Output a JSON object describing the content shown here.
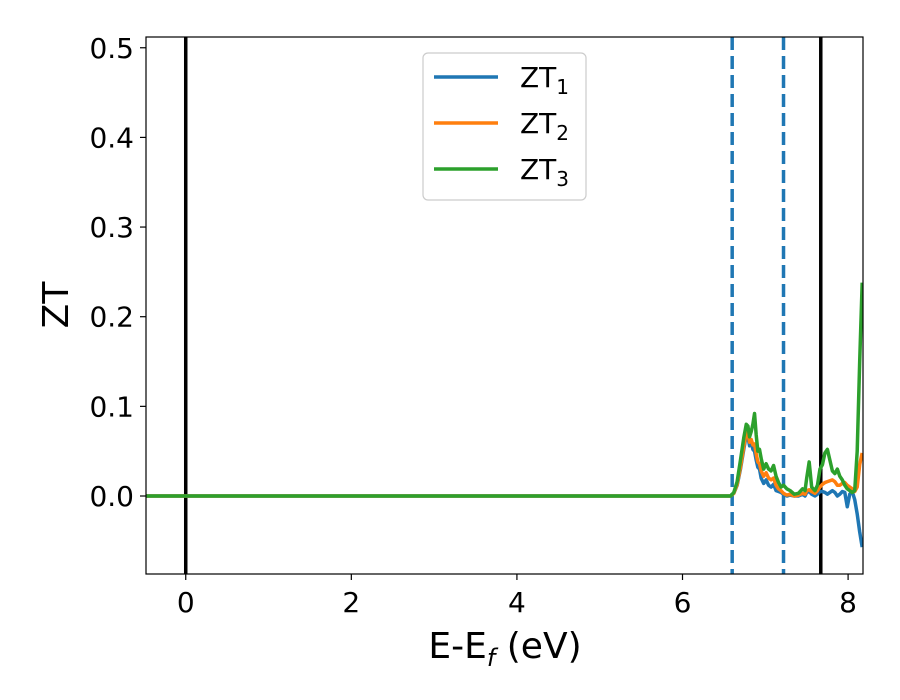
{
  "chart_data": {
    "type": "line",
    "xlabel_main": "E-E",
    "xlabel_sub": "f",
    "xlabel_unit": " (eV)",
    "ylabel": "ZT",
    "xlim": [
      -0.48,
      8.18
    ],
    "ylim": [
      -0.087,
      0.512
    ],
    "xticks": [
      0,
      2,
      4,
      6,
      8
    ],
    "xtick_labels": [
      "0",
      "2",
      "4",
      "6",
      "8"
    ],
    "yticks": [
      0.0,
      0.1,
      0.2,
      0.3,
      0.4,
      0.5
    ],
    "ytick_labels": [
      "0.0",
      "0.1",
      "0.2",
      "0.3",
      "0.4",
      "0.5"
    ],
    "grid": false,
    "legend_position": "top-center",
    "vlines_solid": [
      0.0,
      7.67
    ],
    "vlines_dashed": [
      6.6,
      7.22
    ],
    "series": [
      {
        "label_main": "ZT",
        "label_sub": "1",
        "color": "#1f77b4",
        "x": [
          -0.48,
          6.55,
          6.58,
          6.62,
          6.66,
          6.7,
          6.74,
          6.77,
          6.79,
          6.81,
          6.83,
          6.85,
          6.87,
          6.89,
          6.91,
          6.93,
          6.95,
          6.98,
          7.01,
          7.04,
          7.07,
          7.1,
          7.13,
          7.16,
          7.19,
          7.22,
          7.26,
          7.3,
          7.35,
          7.4,
          7.45,
          7.48,
          7.5,
          7.53,
          7.56,
          7.6,
          7.63,
          7.66,
          7.69,
          7.72,
          7.75,
          7.78,
          7.81,
          7.84,
          7.87,
          7.9,
          7.93,
          7.96,
          7.99,
          8.02,
          8.05,
          8.08,
          8.11,
          8.14,
          8.17
        ],
        "y": [
          0.0,
          0.0,
          0.0,
          0.003,
          0.012,
          0.03,
          0.052,
          0.068,
          0.066,
          0.056,
          0.06,
          0.052,
          0.05,
          0.04,
          0.032,
          0.03,
          0.02,
          0.014,
          0.018,
          0.012,
          0.01,
          0.013,
          0.006,
          0.005,
          0.004,
          0.002,
          0.0,
          0.001,
          0.0,
          0.0,
          0.002,
          0.0,
          0.004,
          0.005,
          0.002,
          0.0,
          0.002,
          0.005,
          0.005,
          0.004,
          0.002,
          0.004,
          0.006,
          0.004,
          0.0,
          0.002,
          0.005,
          0.004,
          -0.012,
          0.002,
          0.005,
          -0.004,
          -0.02,
          -0.04,
          -0.057
        ]
      },
      {
        "label_main": "ZT",
        "label_sub": "2",
        "color": "#ff7f0e",
        "x": [
          -0.48,
          6.55,
          6.58,
          6.62,
          6.66,
          6.7,
          6.74,
          6.77,
          6.79,
          6.81,
          6.83,
          6.85,
          6.87,
          6.89,
          6.91,
          6.93,
          6.95,
          6.98,
          7.01,
          7.04,
          7.07,
          7.1,
          7.13,
          7.16,
          7.19,
          7.22,
          7.26,
          7.3,
          7.35,
          7.4,
          7.45,
          7.48,
          7.5,
          7.53,
          7.56,
          7.6,
          7.63,
          7.66,
          7.69,
          7.72,
          7.75,
          7.78,
          7.81,
          7.84,
          7.87,
          7.9,
          7.93,
          7.96,
          7.99,
          8.02,
          8.05,
          8.08,
          8.11,
          8.14,
          8.17
        ],
        "y": [
          0.0,
          0.0,
          0.0,
          0.003,
          0.013,
          0.032,
          0.055,
          0.072,
          0.07,
          0.06,
          0.063,
          0.057,
          0.058,
          0.047,
          0.038,
          0.036,
          0.028,
          0.022,
          0.026,
          0.02,
          0.018,
          0.02,
          0.012,
          0.008,
          0.006,
          0.003,
          0.001,
          0.002,
          0.0,
          0.001,
          0.003,
          0.002,
          0.006,
          0.007,
          0.005,
          0.003,
          0.006,
          0.01,
          0.013,
          0.015,
          0.016,
          0.017,
          0.018,
          0.016,
          0.012,
          0.012,
          0.014,
          0.015,
          0.012,
          0.01,
          0.008,
          0.005,
          0.01,
          0.035,
          0.048
        ]
      },
      {
        "label_main": "ZT",
        "label_sub": "3",
        "color": "#2ca02c",
        "x": [
          -0.48,
          6.55,
          6.58,
          6.62,
          6.66,
          6.7,
          6.74,
          6.77,
          6.79,
          6.81,
          6.83,
          6.85,
          6.87,
          6.89,
          6.91,
          6.93,
          6.95,
          6.98,
          7.01,
          7.04,
          7.07,
          7.1,
          7.13,
          7.16,
          7.19,
          7.22,
          7.26,
          7.3,
          7.35,
          7.4,
          7.45,
          7.48,
          7.5,
          7.53,
          7.56,
          7.6,
          7.63,
          7.66,
          7.69,
          7.72,
          7.75,
          7.78,
          7.81,
          7.84,
          7.87,
          7.9,
          7.93,
          7.96,
          7.99,
          8.02,
          8.05,
          8.08,
          8.11,
          8.14,
          8.17
        ],
        "y": [
          0.0,
          0.0,
          0.0,
          0.004,
          0.016,
          0.04,
          0.065,
          0.08,
          0.078,
          0.066,
          0.072,
          0.08,
          0.092,
          0.068,
          0.05,
          0.052,
          0.042,
          0.03,
          0.036,
          0.03,
          0.028,
          0.034,
          0.022,
          0.015,
          0.01,
          0.012,
          0.008,
          0.006,
          0.002,
          0.003,
          0.008,
          0.006,
          0.02,
          0.038,
          0.01,
          0.006,
          0.012,
          0.03,
          0.035,
          0.048,
          0.052,
          0.04,
          0.028,
          0.025,
          0.03,
          0.022,
          0.018,
          0.012,
          0.008,
          0.006,
          0.004,
          0.006,
          0.05,
          0.15,
          0.238
        ]
      }
    ]
  }
}
